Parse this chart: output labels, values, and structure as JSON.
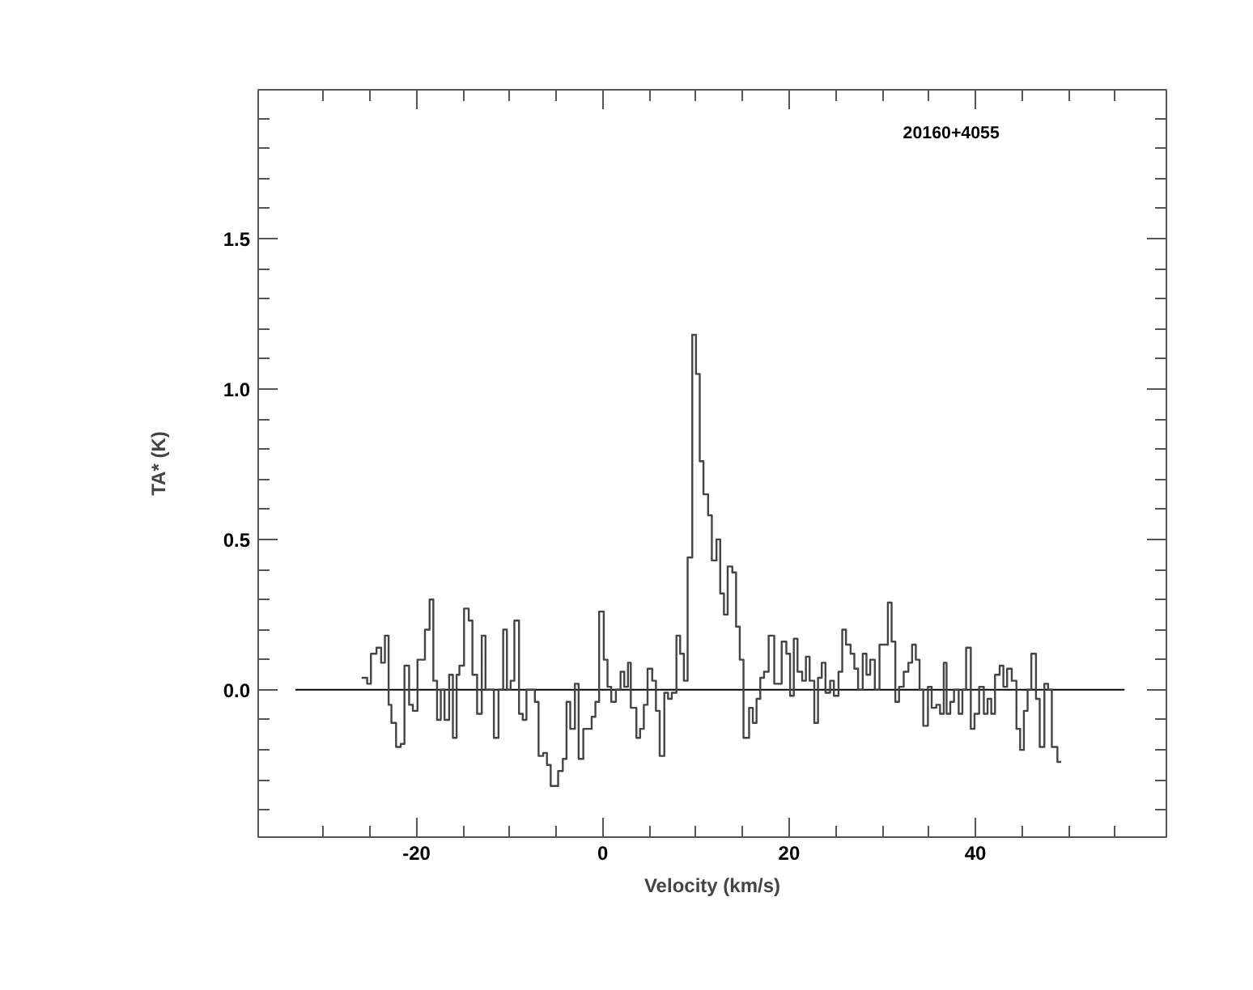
{
  "chart_data": {
    "type": "step",
    "title": "20160+4055",
    "xlabel": "Velocity (km/s)",
    "ylabel": "TA* (K)",
    "xlim": [
      -37,
      60.5
    ],
    "ylim": [
      -0.49,
      1.995
    ],
    "xticks": [
      {
        "value": -30,
        "label": null
      },
      {
        "value": -25,
        "label": null
      },
      -20,
      {
        "value": -15,
        "label": null
      },
      {
        "value": -10,
        "label": null
      },
      {
        "value": -5,
        "label": null
      },
      0,
      {
        "value": 5,
        "label": null
      },
      {
        "value": 10,
        "label": null
      },
      {
        "value": 15,
        "label": null
      },
      20,
      {
        "value": 25,
        "label": null
      },
      {
        "value": 30,
        "label": null
      },
      {
        "value": 35,
        "label": null
      },
      40,
      {
        "value": 45,
        "label": null
      },
      {
        "value": 50,
        "label": null
      },
      {
        "value": 55,
        "label": null
      }
    ],
    "yticks": [
      {
        "value": -0.4,
        "label": null
      },
      {
        "value": -0.3,
        "label": null
      },
      {
        "value": -0.2,
        "label": null
      },
      {
        "value": -0.1,
        "label": null
      },
      {
        "value": 0,
        "label": "0.0"
      },
      {
        "value": 0.1,
        "label": null
      },
      {
        "value": 0.2,
        "label": null
      },
      {
        "value": 0.3,
        "label": null
      },
      {
        "value": 0.4,
        "label": null
      },
      0.5,
      {
        "value": 0.6,
        "label": null
      },
      {
        "value": 0.7,
        "label": null
      },
      {
        "value": 0.8,
        "label": null
      },
      {
        "value": 0.9,
        "label": null
      },
      {
        "value": 1.0,
        "label": "1.0"
      },
      {
        "value": 1.1,
        "label": null
      },
      {
        "value": 1.2,
        "label": null
      },
      {
        "value": 1.3,
        "label": null
      },
      {
        "value": 1.4,
        "label": null
      },
      1.5,
      {
        "value": 1.6,
        "label": null
      },
      {
        "value": 1.7,
        "label": null
      },
      {
        "value": 1.8,
        "label": null
      },
      {
        "value": 1.9,
        "label": null
      }
    ],
    "series": [
      {
        "type": "line",
        "color": "#000000",
        "x": [
          -33,
          56
        ],
        "values": [
          0,
          0
        ]
      },
      {
        "color": "#444444",
        "x": [
          -25.9,
          -25.3,
          -24.9,
          -24.3,
          -23.8,
          -23.4,
          -23.0,
          -22.7,
          -22.2,
          -21.7,
          -21.3,
          -20.8,
          -20.4,
          -19.9,
          -19.1,
          -18.6,
          -18.2,
          -17.8,
          -17.4,
          -17.0,
          -16.5,
          -16.1,
          -15.7,
          -15.4,
          -14.9,
          -14.4,
          -14.0,
          -13.5,
          -13.0,
          -12.6,
          -11.7,
          -11.2,
          -10.7,
          -10.3,
          -9.9,
          -9.5,
          -9.0,
          -8.6,
          -8.2,
          -7.3,
          -6.9,
          -6.4,
          -6.0,
          -5.6,
          -5.2,
          -4.8,
          -4.3,
          -3.9,
          -3.5,
          -3.0,
          -2.6,
          -2.1,
          -1.2,
          -0.8,
          -0.4,
          0.1,
          0.5,
          0.9,
          1.4,
          1.9,
          2.3,
          2.7,
          3.0,
          3.6,
          4.0,
          4.4,
          4.8,
          5.3,
          5.7,
          6.1,
          6.6,
          7.0,
          7.4,
          7.9,
          8.3,
          8.7,
          9.1,
          9.6,
          10.0,
          10.4,
          10.8,
          11.3,
          11.7,
          12.2,
          12.6,
          13.0,
          13.4,
          13.9,
          14.3,
          14.7,
          15.1,
          15.7,
          16.1,
          16.5,
          16.9,
          17.3,
          17.8,
          18.4,
          19.2,
          19.7,
          20.1,
          20.5,
          20.9,
          21.4,
          21.8,
          22.2,
          22.7,
          23.1,
          23.5,
          23.9,
          24.4,
          24.8,
          25.3,
          25.7,
          26.1,
          26.6,
          27.0,
          27.4,
          27.9,
          28.3,
          28.7,
          29.2,
          29.7,
          30.1,
          30.6,
          31.0,
          31.4,
          31.8,
          32.3,
          32.8,
          33.2,
          33.6,
          34.0,
          34.4,
          34.9,
          35.3,
          35.8,
          36.2,
          36.6,
          36.9,
          37.3,
          37.7,
          38.2,
          38.6,
          39.0,
          39.5,
          39.9,
          40.4,
          40.9,
          41.3,
          41.7,
          42.1,
          42.6,
          43.0,
          43.4,
          43.9,
          44.4,
          44.8,
          45.2,
          45.6,
          46.0,
          46.5,
          46.9,
          47.4,
          47.8,
          48.2,
          48.8,
          49.2
        ],
        "values": [
          0.04,
          0.02,
          0.12,
          0.14,
          0.09,
          0.18,
          -0.05,
          -0.11,
          -0.19,
          -0.18,
          0.08,
          -0.05,
          -0.07,
          0.1,
          0.2,
          0.3,
          0.03,
          -0.1,
          0.0,
          -0.1,
          0.05,
          -0.16,
          0.05,
          0.08,
          0.27,
          0.23,
          0.05,
          -0.08,
          0.18,
          0.0,
          -0.16,
          0.0,
          0.2,
          0.0,
          0.03,
          0.23,
          -0.08,
          -0.1,
          0.0,
          -0.04,
          -0.22,
          -0.21,
          -0.25,
          -0.32,
          -0.32,
          -0.27,
          -0.23,
          -0.04,
          -0.13,
          0.02,
          -0.23,
          -0.13,
          -0.09,
          -0.04,
          0.26,
          0.1,
          0.01,
          -0.04,
          0.0,
          0.06,
          0.01,
          0.09,
          -0.06,
          -0.16,
          -0.13,
          -0.05,
          0.07,
          0.03,
          -0.07,
          -0.22,
          -0.01,
          -0.03,
          -0.01,
          0.18,
          0.12,
          0.03,
          0.44,
          1.18,
          1.05,
          0.76,
          0.65,
          0.58,
          0.43,
          0.5,
          0.32,
          0.25,
          0.41,
          0.39,
          0.21,
          0.1,
          -0.16,
          -0.06,
          -0.11,
          -0.03,
          0.04,
          0.06,
          0.18,
          0.02,
          0.16,
          0.12,
          -0.02,
          0.17,
          0.06,
          0.03,
          0.11,
          0.03,
          -0.11,
          0.04,
          0.09,
          -0.01,
          0.03,
          -0.02,
          0.06,
          0.2,
          0.15,
          0.12,
          0.07,
          0.0,
          0.12,
          0.05,
          0.1,
          0.0,
          0.15,
          0.15,
          0.29,
          0.16,
          -0.04,
          0.01,
          0.06,
          0.09,
          0.15,
          0.1,
          0.0,
          -0.12,
          0.01,
          -0.06,
          -0.05,
          -0.08,
          0.09,
          -0.08,
          -0.04,
          0.0,
          -0.08,
          0.0,
          0.14,
          -0.13,
          -0.08,
          0.01,
          -0.08,
          -0.03,
          -0.08,
          0.05,
          0.08,
          0.01,
          0.07,
          0.03,
          -0.13,
          -0.2,
          -0.07,
          0.0,
          0.12,
          -0.03,
          -0.19,
          0.02,
          0.0,
          -0.19,
          -0.24,
          -0.24
        ]
      }
    ]
  }
}
